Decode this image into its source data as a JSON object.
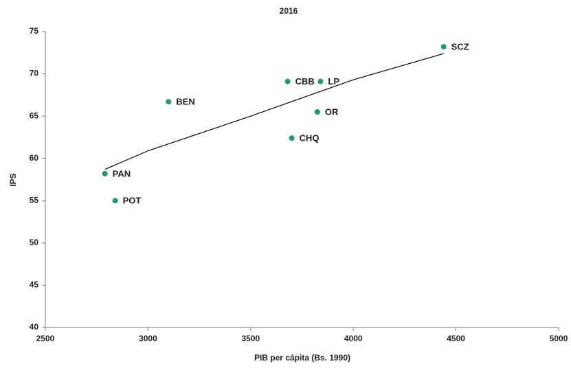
{
  "chart_data": {
    "type": "scatter",
    "title": "2016",
    "xlabel": "PIB per cápita (Bs. 1990)",
    "ylabel": "IPS",
    "labels": [
      "SCZ",
      "LP",
      "CBB",
      "BEN",
      "OR",
      "CHQ",
      "PAN",
      "POT"
    ],
    "x": [
      4440,
      3840,
      3680,
      3100,
      3825,
      3700,
      2790,
      2840
    ],
    "values": [
      73.2,
      69.1,
      69.1,
      66.7,
      65.5,
      62.4,
      58.2,
      55.0
    ],
    "color": "#1f9a6d",
    "trendline": {
      "x": [
        2790,
        3000,
        3500,
        4000,
        4440
      ],
      "values": [
        58.7,
        60.9,
        65.0,
        69.3,
        72.4
      ],
      "color": "#000000"
    },
    "xlim": [
      2500,
      5000
    ],
    "xticks": [
      2500,
      3000,
      3500,
      4000,
      4500,
      5000
    ],
    "ylim": [
      40,
      75
    ],
    "yticks": [
      40,
      45,
      50,
      55,
      60,
      65,
      70,
      75
    ]
  }
}
